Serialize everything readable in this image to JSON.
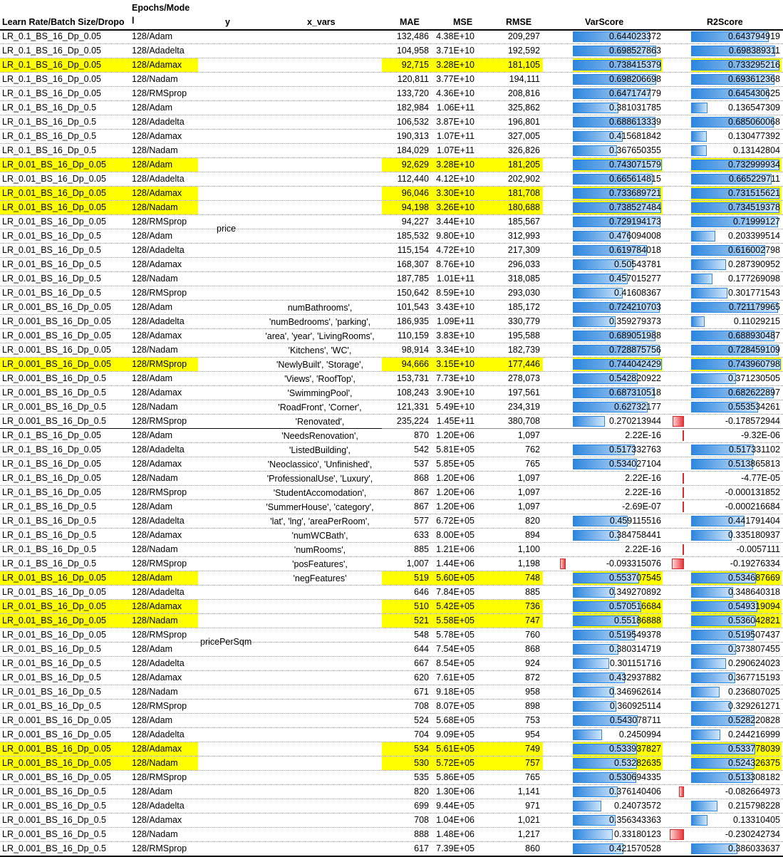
{
  "headers": {
    "lr": "Learn Rate/Batch Size/Dropo",
    "epochs_line1": "Epochs/Mode",
    "epochs_line2": "l",
    "y": "y",
    "x_vars": "x_vars",
    "mae": "MAE",
    "mse": "MSE",
    "rmse": "RMSE",
    "varscore": "VarScore",
    "r2score": "R2Score"
  },
  "y_labels": {
    "price": "price",
    "pricePerSqm": "pricePerSqm"
  },
  "x_vars_lines": [
    "numBathrooms',",
    "'numBedrooms', 'parking',",
    "'area', 'year', 'LivingRooms',",
    "'Kitchens', 'WC',",
    "'NewlyBuilt', 'Storage',",
    "'Views', 'RoofTop',",
    "'SwimmingPool',",
    "'RoadFront', 'Corner',",
    "'Renovated',",
    "'NeedsRenovation',",
    "'ListedBuilding',",
    "'Neoclassico', 'Unfinished',",
    "'ProfessionalUse', 'Luxury',",
    "'StudentAccomodation',",
    "'SummerHouse', 'category',",
    "'lat', 'lng', 'areaPerRoom',",
    "'numWCBath',",
    "'numRooms',",
    "'posFeatures',",
    "'negFeatures'"
  ],
  "rows": [
    {
      "lr": "LR_0.1_BS_16_Dp_0.05",
      "ep": "128/Adam",
      "mae": "132,486",
      "mse": "4.38E+10",
      "rmse": "209,297",
      "var": "0.644023372",
      "varv": 0.644023372,
      "r2": "0.643794919",
      "r2v": 0.643794919,
      "hl": false
    },
    {
      "lr": "LR_0.1_BS_16_Dp_0.05",
      "ep": "128/Adadelta",
      "mae": "104,958",
      "mse": "3.71E+10",
      "rmse": "192,592",
      "var": "0.698527863",
      "varv": 0.698527863,
      "r2": "0.698389311",
      "r2v": 0.698389311,
      "hl": false
    },
    {
      "lr": "LR_0.1_BS_16_Dp_0.05",
      "ep": "128/Adamax",
      "mae": "92,715",
      "mse": "3.28E+10",
      "rmse": "181,105",
      "var": "0.738415379",
      "varv": 0.738415379,
      "r2": "0.733295216",
      "r2v": 0.733295216,
      "hl": true
    },
    {
      "lr": "LR_0.1_BS_16_Dp_0.05",
      "ep": "128/Nadam",
      "mae": "120,811",
      "mse": "3.77E+10",
      "rmse": "194,111",
      "var": "0.698206698",
      "varv": 0.698206698,
      "r2": "0.693612368",
      "r2v": 0.693612368,
      "hl": false
    },
    {
      "lr": "LR_0.1_BS_16_Dp_0.05",
      "ep": "128/RMSprop",
      "mae": "133,720",
      "mse": "4.36E+10",
      "rmse": "208,816",
      "var": "0.647174779",
      "varv": 0.647174779,
      "r2": "0.645430625",
      "r2v": 0.645430625,
      "hl": false
    },
    {
      "lr": "LR_0.1_BS_16_Dp_0.5",
      "ep": "128/Adam",
      "mae": "182,984",
      "mse": "1.06E+11",
      "rmse": "325,862",
      "var": "0.381031785",
      "varv": 0.381031785,
      "r2": "0.136547309",
      "r2v": 0.136547309,
      "hl": false
    },
    {
      "lr": "LR_0.1_BS_16_Dp_0.5",
      "ep": "128/Adadelta",
      "mae": "106,532",
      "mse": "3.87E+10",
      "rmse": "196,801",
      "var": "0.688613339",
      "varv": 0.688613339,
      "r2": "0.685060068",
      "r2v": 0.685060068,
      "hl": false
    },
    {
      "lr": "LR_0.1_BS_16_Dp_0.5",
      "ep": "128/Adamax",
      "mae": "190,313",
      "mse": "1.07E+11",
      "rmse": "327,005",
      "var": "0.415681842",
      "varv": 0.415681842,
      "r2": "0.130477392",
      "r2v": 0.130477392,
      "hl": false
    },
    {
      "lr": "LR_0.1_BS_16_Dp_0.5",
      "ep": "128/Nadam",
      "mae": "184,029",
      "mse": "1.07E+11",
      "rmse": "326,826",
      "var": "0.367650355",
      "varv": 0.367650355,
      "r2": "0.13142804",
      "r2v": 0.13142804,
      "hl": false
    },
    {
      "lr": "LR_0.01_BS_16_Dp_0.05",
      "ep": "128/Adam",
      "mae": "92,629",
      "mse": "3.28E+10",
      "rmse": "181,205",
      "var": "0.743071579",
      "varv": 0.743071579,
      "r2": "0.732999934",
      "r2v": 0.732999934,
      "hl": true
    },
    {
      "lr": "LR_0.01_BS_16_Dp_0.05",
      "ep": "128/Adadelta",
      "mae": "112,440",
      "mse": "4.12E+10",
      "rmse": "202,902",
      "var": "0.665614815",
      "varv": 0.665614815,
      "r2": "0.665229711",
      "r2v": 0.665229711,
      "hl": false
    },
    {
      "lr": "LR_0.01_BS_16_Dp_0.05",
      "ep": "128/Adamax",
      "mae": "96,046",
      "mse": "3.30E+10",
      "rmse": "181,708",
      "var": "0.733689721",
      "varv": 0.733689721,
      "r2": "0.731515621",
      "r2v": 0.731515621,
      "hl": true
    },
    {
      "lr": "LR_0.01_BS_16_Dp_0.05",
      "ep": "128/Nadam",
      "mae": "94,198",
      "mse": "3.26E+10",
      "rmse": "180,688",
      "var": "0.738527484",
      "varv": 0.738527484,
      "r2": "0.734519378",
      "r2v": 0.734519378,
      "hl": true
    },
    {
      "lr": "LR_0.01_BS_16_Dp_0.05",
      "ep": "128/RMSprop",
      "mae": "94,227",
      "mse": "3.44E+10",
      "rmse": "185,567",
      "var": "0.729194173",
      "varv": 0.729194173,
      "r2": "0.71999127",
      "r2v": 0.71999127,
      "hl": false
    },
    {
      "lr": "LR_0.01_BS_16_Dp_0.5",
      "ep": "128/Adam",
      "mae": "185,532",
      "mse": "9.80E+10",
      "rmse": "312,993",
      "var": "0.476094008",
      "varv": 0.476094008,
      "r2": "0.203399514",
      "r2v": 0.203399514,
      "hl": false
    },
    {
      "lr": "LR_0.01_BS_16_Dp_0.5",
      "ep": "128/Adadelta",
      "mae": "115,154",
      "mse": "4.72E+10",
      "rmse": "217,309",
      "var": "0.619784018",
      "varv": 0.619784018,
      "r2": "0.616002798",
      "r2v": 0.616002798,
      "hl": false
    },
    {
      "lr": "LR_0.01_BS_16_Dp_0.5",
      "ep": "128/Adamax",
      "mae": "168,307",
      "mse": "8.76E+10",
      "rmse": "296,033",
      "var": "0.50543781",
      "varv": 0.50543781,
      "r2": "0.287390952",
      "r2v": 0.287390952,
      "hl": false
    },
    {
      "lr": "LR_0.01_BS_16_Dp_0.5",
      "ep": "128/Nadam",
      "mae": "187,785",
      "mse": "1.01E+11",
      "rmse": "318,085",
      "var": "0.457015277",
      "varv": 0.457015277,
      "r2": "0.177269098",
      "r2v": 0.177269098,
      "hl": false
    },
    {
      "lr": "LR_0.01_BS_16_Dp_0.5",
      "ep": "128/RMSprop",
      "mae": "150,642",
      "mse": "8.59E+10",
      "rmse": "293,030",
      "var": "0.41608367",
      "varv": 0.41608367,
      "r2": "0.301771543",
      "r2v": 0.301771543,
      "hl": false
    },
    {
      "lr": "LR_0.001_BS_16_Dp_0.05",
      "ep": "128/Adam",
      "mae": "101,543",
      "mse": "3.43E+10",
      "rmse": "185,172",
      "var": "0.724210703",
      "varv": 0.724210703,
      "r2": "0.721179965",
      "r2v": 0.721179965,
      "hl": false
    },
    {
      "lr": "LR_0.001_BS_16_Dp_0.05",
      "ep": "128/Adadelta",
      "mae": "186,935",
      "mse": "1.09E+11",
      "rmse": "330,779",
      "var": "0.359279373",
      "varv": 0.359279373,
      "r2": "0.11029215",
      "r2v": 0.11029215,
      "hl": false
    },
    {
      "lr": "LR_0.001_BS_16_Dp_0.05",
      "ep": "128/Adamax",
      "mae": "110,159",
      "mse": "3.83E+10",
      "rmse": "195,588",
      "var": "0.689051988",
      "varv": 0.689051988,
      "r2": "0.688930487",
      "r2v": 0.688930487,
      "hl": false
    },
    {
      "lr": "LR_0.001_BS_16_Dp_0.05",
      "ep": "128/Nadam",
      "mae": "98,914",
      "mse": "3.34E+10",
      "rmse": "182,739",
      "var": "0.728875756",
      "varv": 0.728875756,
      "r2": "0.728459109",
      "r2v": 0.728459109,
      "hl": false
    },
    {
      "lr": "LR_0.001_BS_16_Dp_0.05",
      "ep": "128/RMSprop",
      "mae": "94,666",
      "mse": "3.15E+10",
      "rmse": "177,446",
      "var": "0.744042429",
      "varv": 0.744042429,
      "r2": "0.743960798",
      "r2v": 0.743960798,
      "hl": true
    },
    {
      "lr": "LR_0.001_BS_16_Dp_0.5",
      "ep": "128/Adam",
      "mae": "153,731",
      "mse": "7.73E+10",
      "rmse": "278,073",
      "var": "0.542820922",
      "varv": 0.542820922,
      "r2": "0.371230505",
      "r2v": 0.371230505,
      "hl": false
    },
    {
      "lr": "LR_0.001_BS_16_Dp_0.5",
      "ep": "128/Adamax",
      "mae": "108,243",
      "mse": "3.90E+10",
      "rmse": "197,561",
      "var": "0.687310518",
      "varv": 0.687310518,
      "r2": "0.682622897",
      "r2v": 0.682622897,
      "hl": false
    },
    {
      "lr": "LR_0.001_BS_16_Dp_0.5",
      "ep": "128/Nadam",
      "mae": "121,331",
      "mse": "5.49E+10",
      "rmse": "234,319",
      "var": "0.62732177",
      "varv": 0.62732177,
      "r2": "0.553534261",
      "r2v": 0.553534261,
      "hl": false
    },
    {
      "lr": "LR_0.001_BS_16_Dp_0.5",
      "ep": "128/RMSprop",
      "mae": "235,224",
      "mse": "1.45E+11",
      "rmse": "380,708",
      "var": "0.270213944",
      "varv": 0.270213944,
      "r2": "-0.178572944",
      "r2v": -0.178572944,
      "hl": false
    },
    {
      "lr": "LR_0.1_BS_16_Dp_0.05",
      "ep": "128/Adam",
      "mae": "870",
      "mse": "1.20E+06",
      "rmse": "1,097",
      "var": "2.22E-16",
      "varv": 0,
      "r2": "-9.32E-06",
      "r2v": -9.32e-06,
      "hl": false
    },
    {
      "lr": "LR_0.1_BS_16_Dp_0.05",
      "ep": "128/Adadelta",
      "mae": "542",
      "mse": "5.81E+05",
      "rmse": "762",
      "var": "0.517332763",
      "varv": 0.517332763,
      "r2": "0.517331102",
      "r2v": 0.517331102,
      "hl": false
    },
    {
      "lr": "LR_0.1_BS_16_Dp_0.05",
      "ep": "128/Adamax",
      "mae": "537",
      "mse": "5.85E+05",
      "rmse": "765",
      "var": "0.534027104",
      "varv": 0.534027104,
      "r2": "0.513865813",
      "r2v": 0.513865813,
      "hl": false
    },
    {
      "lr": "LR_0.1_BS_16_Dp_0.05",
      "ep": "128/Nadam",
      "mae": "868",
      "mse": "1.20E+06",
      "rmse": "1,097",
      "var": "2.22E-16",
      "varv": 0,
      "r2": "-4.77E-05",
      "r2v": -4.77e-05,
      "hl": false
    },
    {
      "lr": "LR_0.1_BS_16_Dp_0.05",
      "ep": "128/RMSprop",
      "mae": "867",
      "mse": "1.20E+06",
      "rmse": "1,097",
      "var": "2.22E-16",
      "varv": 0,
      "r2": "-0.000131852",
      "r2v": -0.000131852,
      "hl": false
    },
    {
      "lr": "LR_0.1_BS_16_Dp_0.5",
      "ep": "128/Adam",
      "mae": "867",
      "mse": "1.20E+06",
      "rmse": "1,097",
      "var": "-2.69E-07",
      "varv": 0,
      "r2": "-0.000216684",
      "r2v": -0.000216684,
      "hl": false
    },
    {
      "lr": "LR_0.1_BS_16_Dp_0.5",
      "ep": "128/Adadelta",
      "mae": "577",
      "mse": "6.72E+05",
      "rmse": "820",
      "var": "0.459115516",
      "varv": 0.459115516,
      "r2": "0.441791404",
      "r2v": 0.441791404,
      "hl": false
    },
    {
      "lr": "LR_0.1_BS_16_Dp_0.5",
      "ep": "128/Adamax",
      "mae": "633",
      "mse": "8.00E+05",
      "rmse": "894",
      "var": "0.384758441",
      "varv": 0.384758441,
      "r2": "0.335180937",
      "r2v": 0.335180937,
      "hl": false
    },
    {
      "lr": "LR_0.1_BS_16_Dp_0.5",
      "ep": "128/Nadam",
      "mae": "885",
      "mse": "1.21E+06",
      "rmse": "1,100",
      "var": "2.22E-16",
      "varv": 0,
      "r2": "-0.0057111",
      "r2v": -0.0057111,
      "hl": false
    },
    {
      "lr": "LR_0.1_BS_16_Dp_0.5",
      "ep": "128/RMSprop",
      "mae": "1,007",
      "mse": "1.44E+06",
      "rmse": "1,198",
      "var": "-0.093315076",
      "varv": -0.093315076,
      "r2": "-0.19276334",
      "r2v": -0.19276334,
      "hl": false
    },
    {
      "lr": "LR_0.01_BS_16_Dp_0.05",
      "ep": "128/Adam",
      "mae": "519",
      "mse": "5.60E+05",
      "rmse": "748",
      "var": "0.553707545",
      "varv": 0.553707545,
      "r2": "0.534687669",
      "r2v": 0.534687669,
      "hl": true
    },
    {
      "lr": "LR_0.01_BS_16_Dp_0.05",
      "ep": "128/Adadelta",
      "mae": "646",
      "mse": "7.84E+05",
      "rmse": "885",
      "var": "0.349270892",
      "varv": 0.349270892,
      "r2": "0.348640318",
      "r2v": 0.348640318,
      "hl": false
    },
    {
      "lr": "LR_0.01_BS_16_Dp_0.05",
      "ep": "128/Adamax",
      "mae": "510",
      "mse": "5.42E+05",
      "rmse": "736",
      "var": "0.570516684",
      "varv": 0.570516684,
      "r2": "0.549319094",
      "r2v": 0.549319094,
      "hl": true
    },
    {
      "lr": "LR_0.01_BS_16_Dp_0.05",
      "ep": "128/Nadam",
      "mae": "521",
      "mse": "5.58E+05",
      "rmse": "747",
      "var": "0.55186888",
      "varv": 0.55186888,
      "r2": "0.536042821",
      "r2v": 0.536042821,
      "hl": true
    },
    {
      "lr": "LR_0.01_BS_16_Dp_0.05",
      "ep": "128/RMSprop",
      "mae": "548",
      "mse": "5.78E+05",
      "rmse": "760",
      "var": "0.519549378",
      "varv": 0.519549378,
      "r2": "0.519507437",
      "r2v": 0.519507437,
      "hl": false
    },
    {
      "lr": "LR_0.01_BS_16_Dp_0.5",
      "ep": "128/Adam",
      "mae": "644",
      "mse": "7.54E+05",
      "rmse": "868",
      "var": "0.380314719",
      "varv": 0.380314719,
      "r2": "0.373807455",
      "r2v": 0.373807455,
      "hl": false
    },
    {
      "lr": "LR_0.01_BS_16_Dp_0.5",
      "ep": "128/Adadelta",
      "mae": "667",
      "mse": "8.54E+05",
      "rmse": "924",
      "var": "0.301151716",
      "varv": 0.301151716,
      "r2": "0.290624023",
      "r2v": 0.290624023,
      "hl": false
    },
    {
      "lr": "LR_0.01_BS_16_Dp_0.5",
      "ep": "128/Adamax",
      "mae": "620",
      "mse": "7.61E+05",
      "rmse": "872",
      "var": "0.432937882",
      "varv": 0.432937882,
      "r2": "0.367715193",
      "r2v": 0.367715193,
      "hl": false
    },
    {
      "lr": "LR_0.01_BS_16_Dp_0.5",
      "ep": "128/Nadam",
      "mae": "671",
      "mse": "9.18E+05",
      "rmse": "958",
      "var": "0.346962614",
      "varv": 0.346962614,
      "r2": "0.236807025",
      "r2v": 0.236807025,
      "hl": false
    },
    {
      "lr": "LR_0.01_BS_16_Dp_0.5",
      "ep": "128/RMSprop",
      "mae": "708",
      "mse": "8.07E+05",
      "rmse": "898",
      "var": "0.360925114",
      "varv": 0.360925114,
      "r2": "0.329261271",
      "r2v": 0.329261271,
      "hl": false
    },
    {
      "lr": "LR_0.001_BS_16_Dp_0.05",
      "ep": "128/Adam",
      "mae": "524",
      "mse": "5.68E+05",
      "rmse": "753",
      "var": "0.543078711",
      "varv": 0.543078711,
      "r2": "0.528220828",
      "r2v": 0.528220828,
      "hl": false
    },
    {
      "lr": "LR_0.001_BS_16_Dp_0.05",
      "ep": "128/Adadelta",
      "mae": "704",
      "mse": "9.09E+05",
      "rmse": "954",
      "var": "0.2450994",
      "varv": 0.2450994,
      "r2": "0.244216999",
      "r2v": 0.244216999,
      "hl": false
    },
    {
      "lr": "LR_0.001_BS_16_Dp_0.05",
      "ep": "128/Adamax",
      "mae": "534",
      "mse": "5.61E+05",
      "rmse": "749",
      "var": "0.533937827",
      "varv": 0.533937827,
      "r2": "0.533778039",
      "r2v": 0.533778039,
      "hl": true
    },
    {
      "lr": "LR_0.001_BS_16_Dp_0.05",
      "ep": "128/Nadam",
      "mae": "530",
      "mse": "5.72E+05",
      "rmse": "757",
      "var": "0.53282635",
      "varv": 0.53282635,
      "r2": "0.524326375",
      "r2v": 0.524326375,
      "hl": true
    },
    {
      "lr": "LR_0.001_BS_16_Dp_0.05",
      "ep": "128/RMSprop",
      "mae": "535",
      "mse": "5.86E+05",
      "rmse": "765",
      "var": "0.530694335",
      "varv": 0.530694335,
      "r2": "0.513308182",
      "r2v": 0.513308182,
      "hl": false
    },
    {
      "lr": "LR_0.001_BS_16_Dp_0.5",
      "ep": "128/Adam",
      "mae": "820",
      "mse": "1.30E+06",
      "rmse": "1,141",
      "var": "0.376140406",
      "varv": 0.376140406,
      "r2": "-0.082664973",
      "r2v": -0.082664973,
      "hl": false
    },
    {
      "lr": "LR_0.001_BS_16_Dp_0.5",
      "ep": "128/Adadelta",
      "mae": "699",
      "mse": "9.44E+05",
      "rmse": "971",
      "var": "0.24073572",
      "varv": 0.24073572,
      "r2": "0.215798228",
      "r2v": 0.215798228,
      "hl": false
    },
    {
      "lr": "LR_0.001_BS_16_Dp_0.5",
      "ep": "128/Adamax",
      "mae": "708",
      "mse": "1.04E+06",
      "rmse": "1,021",
      "var": "0.356343363",
      "varv": 0.356343363,
      "r2": "0.13310405",
      "r2v": 0.13310405,
      "hl": false
    },
    {
      "lr": "LR_0.001_BS_16_Dp_0.5",
      "ep": "128/Nadam",
      "mae": "888",
      "mse": "1.48E+06",
      "rmse": "1,217",
      "var": "0.33180123",
      "varv": 0.33180123,
      "r2": "-0.230242734",
      "r2v": -0.230242734,
      "hl": false
    },
    {
      "lr": "LR_0.001_BS_16_Dp_0.5",
      "ep": "128/RMSprop",
      "mae": "617",
      "mse": "7.39E+05",
      "rmse": "860",
      "var": "0.421570528",
      "varv": 0.421570528,
      "r2": "0.386033637",
      "r2v": 0.386033637,
      "hl": false
    }
  ]
}
